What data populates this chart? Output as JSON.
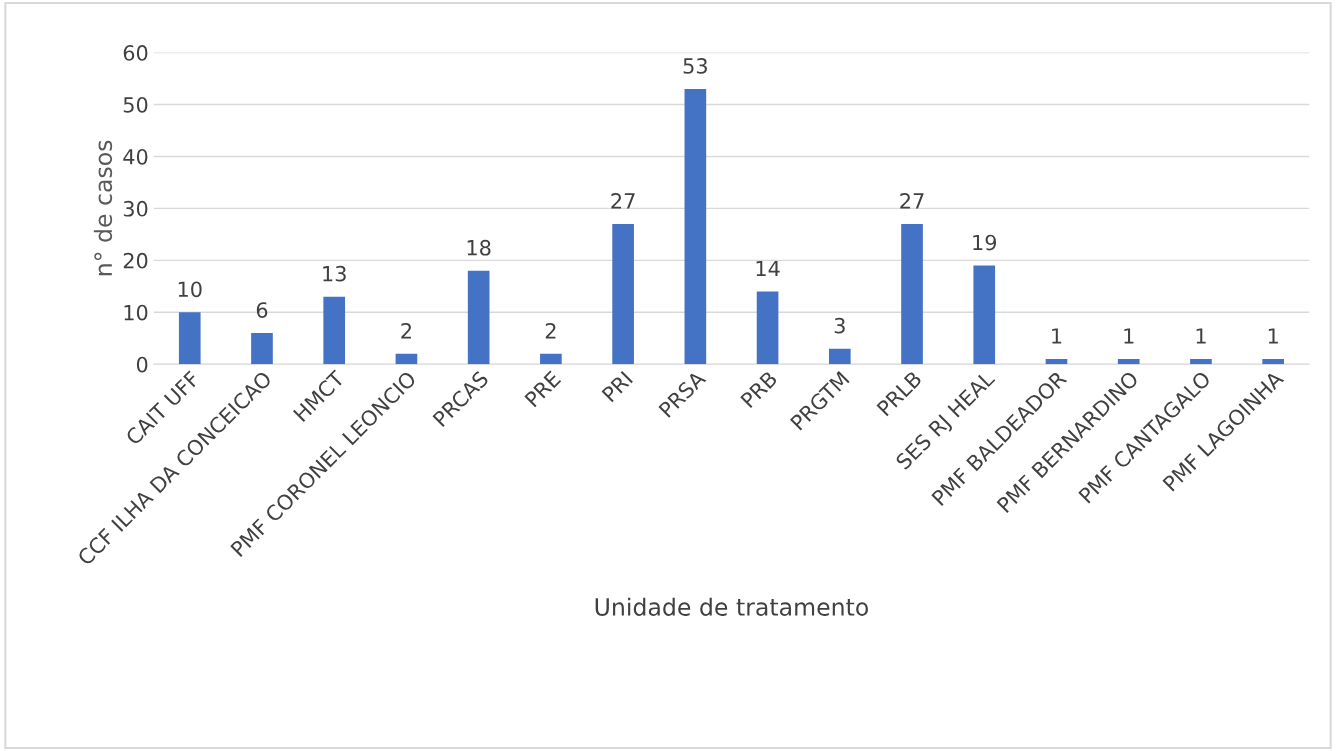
{
  "chart_data": {
    "type": "bar",
    "xlabel": "Unidade de tratamento",
    "ylabel": "n° de casos",
    "categories": [
      "CAIT UFF",
      "CCF ILHA DA CONCEICAO",
      "HMCT",
      "PMF CORONEL LEONCIO",
      "PRCAS",
      "PRE",
      "PRI",
      "PRSA",
      "PRB",
      "PRGTM",
      "PRLB",
      "SES RJ HEAL",
      "PMF BALDEADOR",
      "PMF BERNARDINO",
      "PMF CANTAGALO",
      "PMF LAGOINHA"
    ],
    "values": [
      10,
      6,
      13,
      2,
      18,
      2,
      27,
      53,
      14,
      3,
      27,
      19,
      1,
      1,
      1,
      1
    ],
    "color": "#4472c4",
    "ylim": [
      0,
      60
    ],
    "yticks": [
      0,
      10,
      20,
      30,
      40,
      50,
      60
    ],
    "grid": "y",
    "data_labels": true
  }
}
